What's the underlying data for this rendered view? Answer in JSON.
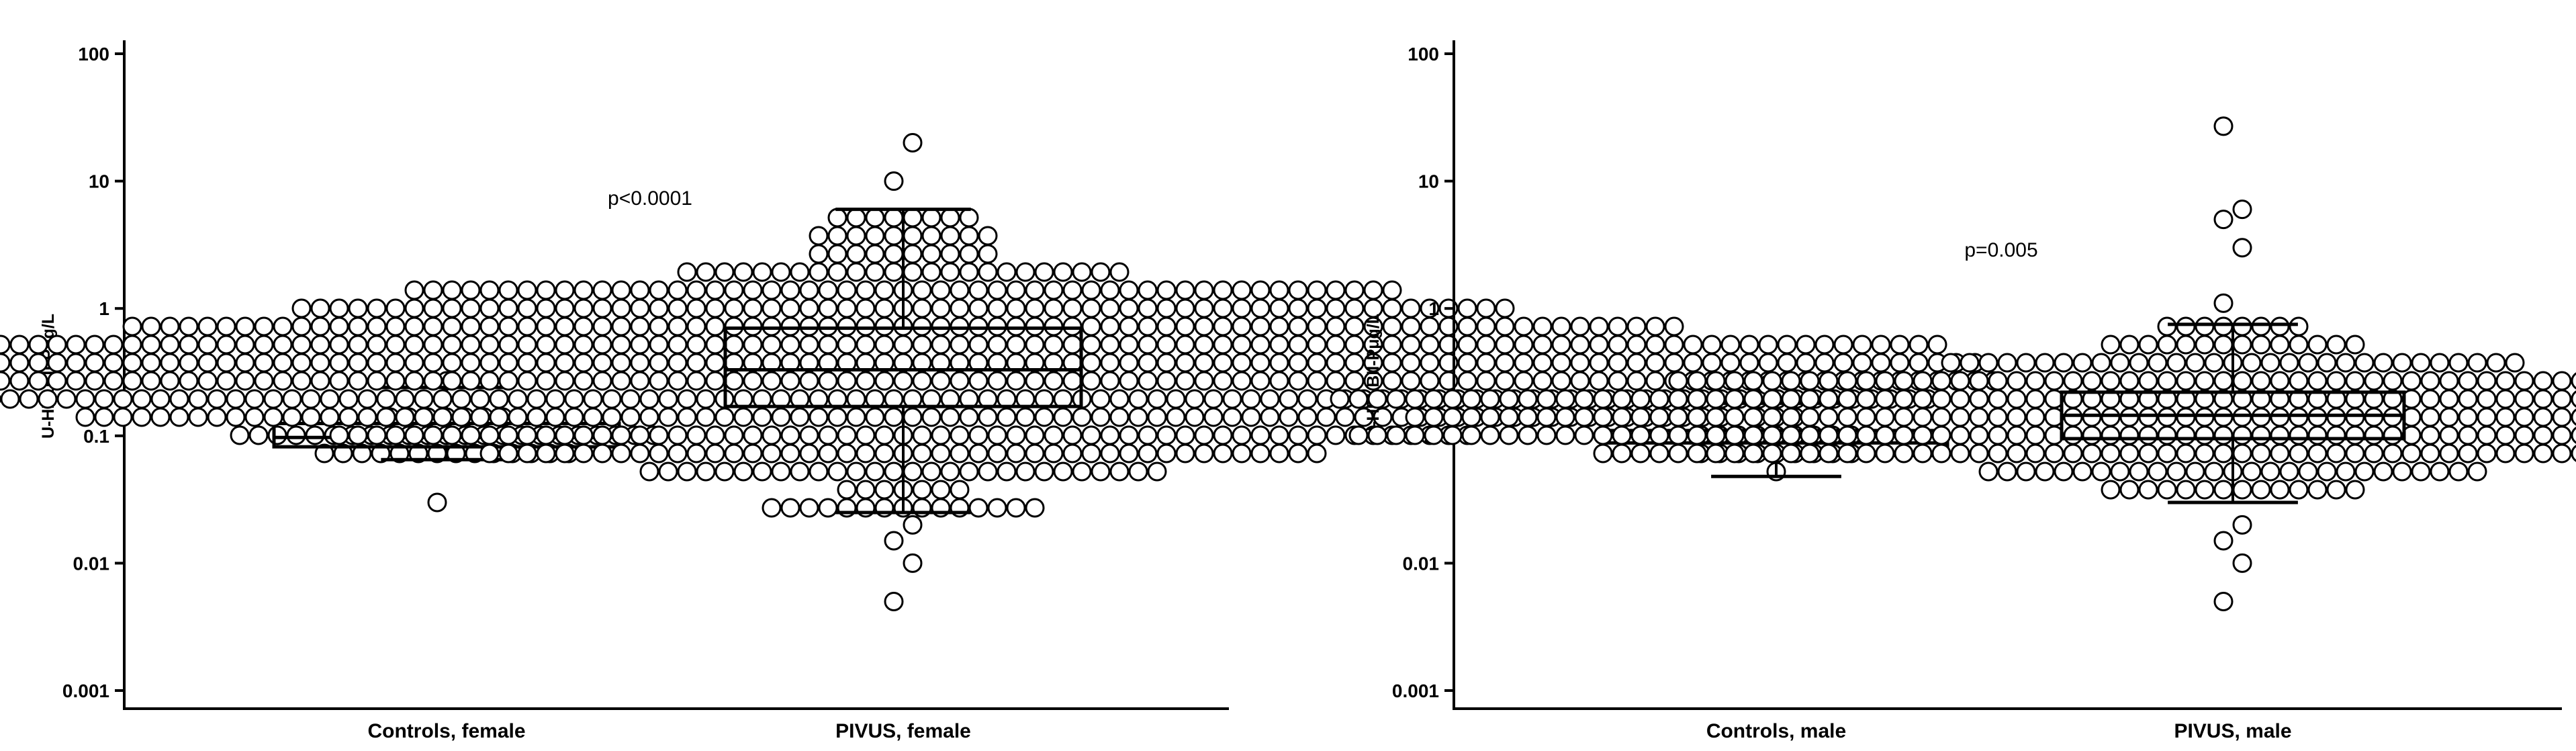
{
  "chart_data": [
    {
      "type": "box",
      "ylabel": "U-HPLBII-Pμg/L",
      "yscale": "log",
      "ylim": [
        0.001,
        100
      ],
      "yticks": [
        "100",
        "10",
        "1",
        "0.1",
        "0.01",
        "0.001"
      ],
      "categories": [
        "Controls, female",
        "PIVUS, female"
      ],
      "annotation": "p<0.0001",
      "boxes": [
        {
          "whisker_low": 0.065,
          "q1": 0.082,
          "median": 0.097,
          "q3": 0.125,
          "whisker_high": 0.24
        },
        {
          "whisker_low": 0.025,
          "q1": 0.17,
          "median": 0.33,
          "q3": 0.7,
          "whisker_high": 6.0
        }
      ],
      "outliers": [
        [
          0.03
        ],
        [
          0.005,
          0.01,
          0.015,
          0.02,
          10,
          20
        ]
      ]
    },
    {
      "type": "box",
      "ylabel": "U-HPLBII-Pμg/L",
      "yscale": "log",
      "ylim": [
        0.001,
        100
      ],
      "yticks": [
        "100",
        "10",
        "1",
        "0.1",
        "0.01",
        "0.001"
      ],
      "categories": [
        "Controls, male",
        "PIVUS, male"
      ],
      "annotation": "p=0.005",
      "boxes": [
        {
          "whisker_low": 0.048,
          "q1": 0.07,
          "median": 0.088,
          "q3": 0.11,
          "whisker_high": 0.18
        },
        {
          "whisker_low": 0.03,
          "q1": 0.095,
          "median": 0.145,
          "q3": 0.22,
          "whisker_high": 0.75
        }
      ],
      "outliers": [
        [
          0.25
        ],
        [
          0.005,
          0.01,
          0.015,
          0.02,
          1.1,
          3.0,
          5.0,
          6.0,
          27
        ]
      ]
    }
  ]
}
